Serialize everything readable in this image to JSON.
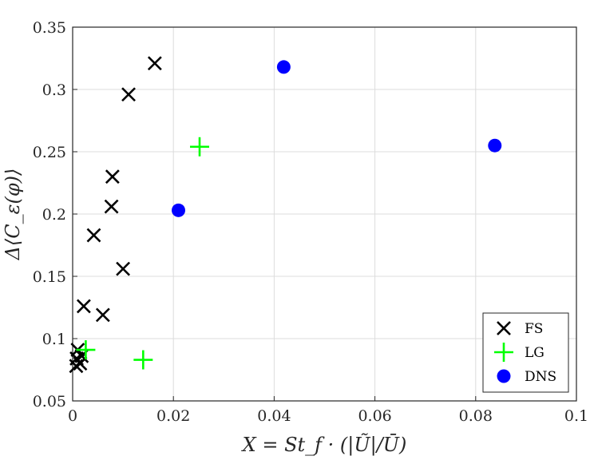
{
  "chart_data": {
    "type": "scatter",
    "title": "",
    "xlabel": "X = St_f · (|Ũ|/Ū)",
    "ylabel": "Δ⟨C_ε(φ)⟩",
    "xlim": [
      0,
      0.1
    ],
    "ylim": [
      0.05,
      0.35
    ],
    "grid": true,
    "legend_position": "bottom-right",
    "x_ticks": [
      0,
      0.02,
      0.04,
      0.06,
      0.08,
      0.1
    ],
    "x_tick_labels": [
      "0",
      "0.02",
      "0.04",
      "0.06",
      "0.08",
      "0.1"
    ],
    "y_ticks": [
      0.05,
      0.1,
      0.15,
      0.2,
      0.25,
      0.3,
      0.35
    ],
    "y_tick_labels": [
      "0.05",
      "0.1",
      "0.15",
      "0.2",
      "0.25",
      "0.3",
      "0.35"
    ],
    "series": [
      {
        "name": "FS",
        "marker": "x",
        "color": "#000000",
        "points": [
          [
            0.0163,
            0.321
          ],
          [
            0.0111,
            0.296
          ],
          [
            0.0079,
            0.23
          ],
          [
            0.0077,
            0.206
          ],
          [
            0.0042,
            0.183
          ],
          [
            0.01,
            0.156
          ],
          [
            0.0022,
            0.126
          ],
          [
            0.006,
            0.119
          ],
          [
            0.001,
            0.091
          ],
          [
            0.0018,
            0.086
          ],
          [
            0.0008,
            0.084
          ],
          [
            0.0015,
            0.08
          ],
          [
            0.0007,
            0.078
          ]
        ]
      },
      {
        "name": "LG",
        "marker": "+",
        "color": "#00ff00",
        "points": [
          [
            0.0252,
            0.254
          ],
          [
            0.014,
            0.083
          ],
          [
            0.0026,
            0.091
          ]
        ]
      },
      {
        "name": "DNS",
        "marker": "o",
        "color": "#0000ff",
        "points": [
          [
            0.0419,
            0.318
          ],
          [
            0.0838,
            0.255
          ],
          [
            0.021,
            0.203
          ]
        ]
      }
    ]
  }
}
